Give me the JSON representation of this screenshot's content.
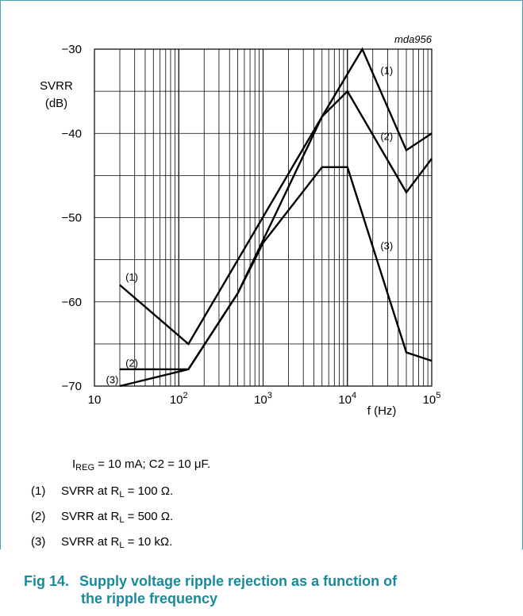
{
  "figure": {
    "id": "mda956",
    "caption_num": "Fig 14.",
    "caption_text": "Supply voltage ripple rejection as a function of the ripple frequency",
    "caption_line1": "Supply voltage ripple rejection as a function of",
    "caption_line2": "the ripple frequency",
    "caption_color": "#1a8a9b",
    "frame_color": "#4aa3b5"
  },
  "conditions": {
    "i_main": "I",
    "i_sub": "REG",
    "i_rest": " = 10 mA; C2 = 10 μF."
  },
  "legend": [
    {
      "num": "(1)",
      "text_pre": "SVRR at R",
      "sub": "L",
      "text_post": " = 100 Ω."
    },
    {
      "num": "(2)",
      "text_pre": "SVRR at R",
      "sub": "L",
      "text_post": " = 500 Ω."
    },
    {
      "num": "(3)",
      "text_pre": "SVRR at R",
      "sub": "L",
      "text_post": " = 10 kΩ."
    }
  ],
  "chart_data": {
    "type": "line",
    "title": "",
    "xlabel": "f (Hz)",
    "ylabel_line1": "SVRR",
    "ylabel_line2": "(dB)",
    "xscale": "log",
    "xlim": [
      10,
      100000
    ],
    "ylim": [
      -70,
      -30
    ],
    "grid": true,
    "x_ticks": [
      {
        "value": 10,
        "base": "10",
        "exp": ""
      },
      {
        "value": 100,
        "base": "10",
        "exp": "2"
      },
      {
        "value": 1000,
        "base": "10",
        "exp": "3"
      },
      {
        "value": 10000,
        "base": "10",
        "exp": "4"
      },
      {
        "value": 100000,
        "base": "10",
        "exp": "5"
      }
    ],
    "y_ticks": [
      -30,
      -40,
      -50,
      -60,
      -70
    ],
    "y_tick_labels": [
      "−30",
      "−40",
      "−50",
      "−60",
      "−70"
    ],
    "series": [
      {
        "name": "(1)",
        "label_x": 29,
        "label_y": -57,
        "points": [
          [
            20,
            -58
          ],
          [
            130,
            -65
          ],
          [
            5000,
            -38
          ],
          [
            15000,
            -30
          ],
          [
            50000,
            -42
          ],
          [
            100000,
            -40
          ]
        ]
      },
      {
        "name": "(2)",
        "label_x": 29,
        "label_y": -67.2,
        "points": [
          [
            20,
            -68
          ],
          [
            130,
            -68
          ],
          [
            500,
            -59
          ],
          [
            5000,
            -38
          ],
          [
            10000,
            -35
          ],
          [
            50000,
            -47
          ],
          [
            100000,
            -43
          ]
        ]
      },
      {
        "name": "(3)",
        "label_x": 17,
        "label_y": -69.2,
        "points": [
          [
            20,
            -70
          ],
          [
            130,
            -68
          ],
          [
            500,
            -59
          ],
          [
            1000,
            -53
          ],
          [
            5000,
            -44
          ],
          [
            10000,
            -44
          ],
          [
            50000,
            -66
          ],
          [
            100000,
            -67
          ]
        ]
      }
    ],
    "series_annotations": [
      {
        "text": "(1)",
        "x": 28000,
        "y": -32.5
      },
      {
        "text": "(2)",
        "x": 28000,
        "y": -40.3
      },
      {
        "text": "(3)",
        "x": 28000,
        "y": -53.3
      }
    ]
  }
}
